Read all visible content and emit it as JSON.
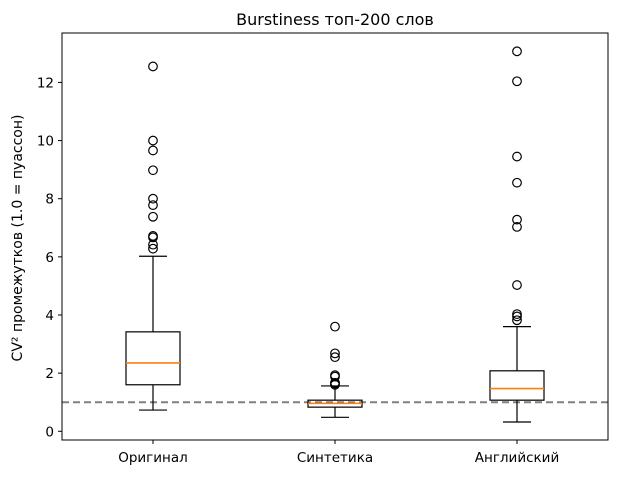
{
  "chart_data": {
    "type": "box",
    "title": "Burstiness топ-200 слов",
    "xlabel": "",
    "ylabel": "CV² промежутков (1.0 = пуассон)",
    "ylim": [
      -0.3,
      13.7
    ],
    "yticks": [
      0,
      2,
      4,
      6,
      8,
      10,
      12
    ],
    "ytick_labels": [
      "0",
      "2",
      "4",
      "6",
      "8",
      "10",
      "12"
    ],
    "categories": [
      "Оригинал",
      "Синтетика",
      "Английский"
    ],
    "boxes": [
      {
        "category": "Оригинал",
        "whisker_low": 0.73,
        "q1": 1.6,
        "median": 2.35,
        "q3": 3.42,
        "whisker_high": 6.02,
        "outliers": [
          6.28,
          6.42,
          6.67,
          6.72,
          7.38,
          7.78,
          8.0,
          8.98,
          9.66,
          10.0,
          12.55
        ]
      },
      {
        "category": "Синтетика",
        "whisker_low": 0.48,
        "q1": 0.83,
        "median": 0.96,
        "q3": 1.07,
        "whisker_high": 1.56,
        "outliers": [
          1.6,
          1.64,
          1.67,
          1.88,
          1.93,
          2.55,
          2.68,
          3.6
        ]
      },
      {
        "category": "Английский",
        "whisker_low": 0.32,
        "q1": 1.07,
        "median": 1.47,
        "q3": 2.08,
        "whisker_high": 3.6,
        "outliers": [
          3.82,
          3.95,
          4.03,
          5.03,
          7.03,
          7.28,
          8.55,
          9.45,
          12.04,
          13.07
        ]
      }
    ],
    "reference_line": {
      "y": 1.0,
      "style": "dashed",
      "color": "#808080"
    },
    "colors": {
      "box": "#000000",
      "median": "#ff7f0e",
      "outlier": "#000000",
      "reference": "#808080"
    },
    "grid": false,
    "legend": "none"
  }
}
